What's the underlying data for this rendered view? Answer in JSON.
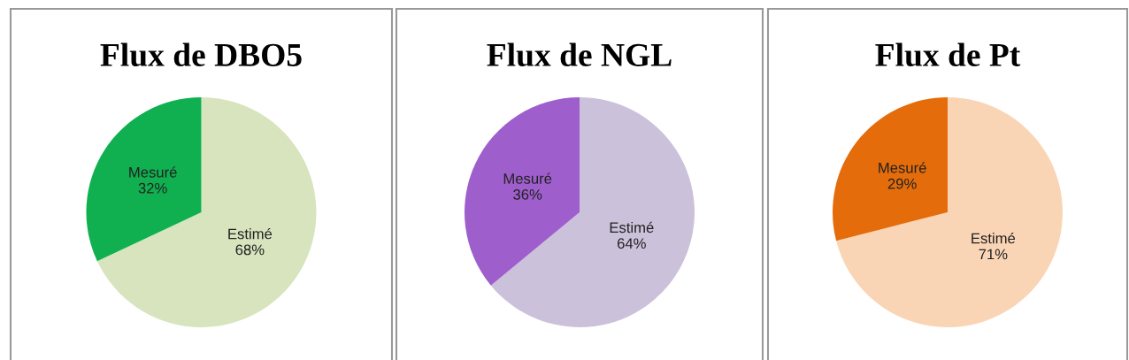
{
  "chart_data": [
    {
      "type": "pie",
      "title": "Flux de DBO5",
      "categories": [
        "Estimé",
        "Mesuré"
      ],
      "values": [
        68,
        32
      ],
      "value_labels": [
        "68%",
        "32%"
      ],
      "colors": [
        "#d7e4bd",
        "#10b050"
      ]
    },
    {
      "type": "pie",
      "title": "Flux de NGL",
      "categories": [
        "Estimé",
        "Mesuré"
      ],
      "values": [
        64,
        36
      ],
      "value_labels": [
        "64%",
        "36%"
      ],
      "colors": [
        "#ccc1da",
        "#9e5ecc"
      ]
    },
    {
      "type": "pie",
      "title": "Flux de Pt",
      "categories": [
        "Estimé",
        "Mesuré"
      ],
      "values": [
        71,
        29
      ],
      "value_labels": [
        "71%",
        "29%"
      ],
      "colors": [
        "#fad5b5",
        "#e46c0a"
      ]
    }
  ]
}
